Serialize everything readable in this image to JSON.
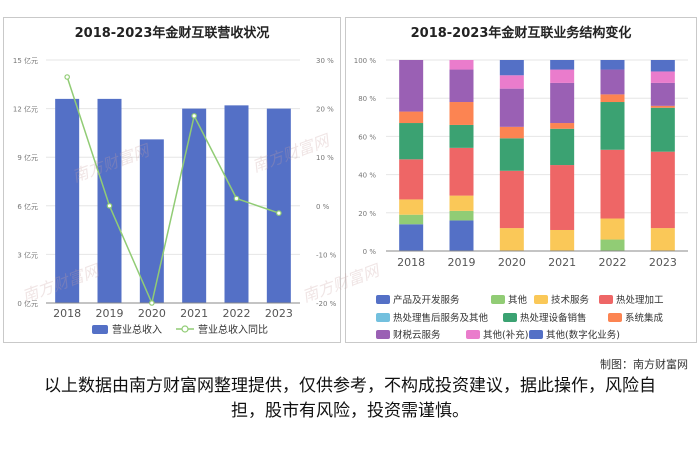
{
  "left_title": "2018-2023年金财互联营收状况",
  "right_title": "2018-2023年金财互联业务结构变化",
  "credit": "制图：南方财富网",
  "disclaimer": "以上数据由南方财富网整理提供，仅供参考，不构成投资建议，据此操作，风险自担，股市有风险，投资需谨慎。",
  "watermark": "南方财富网",
  "colors": {
    "revenue_bar": "#5470c6",
    "yoy_line": "#91cc75"
  },
  "chart_data": [
    {
      "type": "bar",
      "title": "2018-2023年金财互联营收状况",
      "categories": [
        "2018",
        "2019",
        "2020",
        "2021",
        "2022",
        "2023"
      ],
      "y_left_ticks": [
        "0 亿元",
        "3 亿元",
        "6 亿元",
        "9 亿元",
        "12 亿元",
        "15 亿元"
      ],
      "y_right_ticks": [
        "-20 %",
        "-10 %",
        "0 %",
        "10 %",
        "20 %",
        "30 %"
      ],
      "ylim_left": [
        0,
        15
      ],
      "ylim_right": [
        -20,
        30
      ],
      "legend_position": "bottom",
      "grid": true,
      "series": [
        {
          "name": "营业总收入",
          "type": "bar",
          "axis": "left",
          "values": [
            12.6,
            12.6,
            10.1,
            12.0,
            12.2,
            12.0
          ]
        },
        {
          "name": "营业总收入同比",
          "type": "line",
          "axis": "right",
          "values": [
            26.5,
            0.0,
            -20.0,
            18.5,
            1.5,
            -1.5
          ]
        }
      ]
    },
    {
      "type": "bar",
      "stacked": true,
      "title": "2018-2023年金财互联业务结构变化",
      "categories": [
        "2018",
        "2019",
        "2020",
        "2021",
        "2022",
        "2023"
      ],
      "y_ticks": [
        "0 %",
        "20 %",
        "40 %",
        "60 %",
        "80 %",
        "100 %"
      ],
      "ylim": [
        0,
        100
      ],
      "legend_position": "bottom",
      "grid": true,
      "series": [
        {
          "name": "产品及开发服务",
          "color": "#5470c6",
          "values": [
            14,
            16,
            0,
            0,
            0,
            0
          ]
        },
        {
          "name": "其他",
          "color": "#91cc75",
          "values": [
            5,
            5,
            0,
            0,
            6,
            0
          ]
        },
        {
          "name": "技术服务",
          "color": "#fac858",
          "values": [
            8,
            8,
            12,
            11,
            11,
            12
          ]
        },
        {
          "name": "热处理加工",
          "color": "#ee6666",
          "values": [
            21,
            25,
            30,
            34,
            36,
            40
          ]
        },
        {
          "name": "热处理售后服务及其他",
          "color": "#73c0de",
          "values": [
            0,
            0,
            0,
            0,
            0,
            0
          ]
        },
        {
          "name": "热处理设备销售",
          "color": "#3ba272",
          "values": [
            19,
            12,
            17,
            19,
            25,
            23
          ]
        },
        {
          "name": "系统集成",
          "color": "#fc8452",
          "values": [
            6,
            12,
            6,
            3,
            4,
            1
          ]
        },
        {
          "name": "财税云服务",
          "color": "#9a60b4",
          "values": [
            27,
            17,
            20,
            21,
            13,
            12
          ]
        },
        {
          "name": "其他(补充)",
          "color": "#ea7ccc",
          "values": [
            0,
            5,
            7,
            7,
            0,
            6
          ]
        },
        {
          "name": "其他(数字化业务)",
          "color": "#5470c6",
          "values": [
            0,
            0,
            8,
            5,
            5,
            6
          ]
        }
      ]
    }
  ]
}
